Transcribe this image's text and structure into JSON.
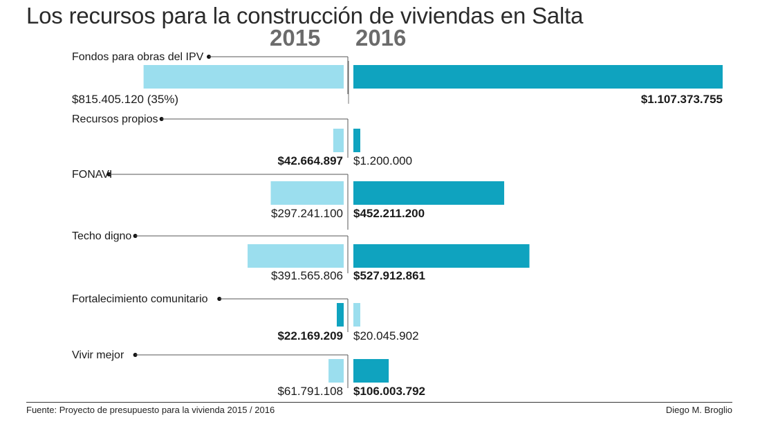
{
  "title": "Los recursos para la construcción de viviendas en Salta",
  "years": [
    "2015",
    "2016"
  ],
  "source": "Fuente: Proyecto de presupuesto para la vivienda 2015 / 2016",
  "author": "Diego M. Broglio",
  "colors": {
    "y2015": "#9bdeee",
    "y2016": "#0fa3bf",
    "text": "#1a1a1a",
    "line": "#555555"
  },
  "chart_data": {
    "type": "bar",
    "orientation": "diverging-horizontal",
    "categories": [
      "Fondos para obras del IPV",
      "Recursos propios",
      "FONAVI",
      "Techo digno",
      "Fortalecimiento comunitario",
      "Vivir mejor"
    ],
    "series": [
      {
        "name": "2015",
        "values": [
          815405120,
          42664897,
          297241100,
          391565806,
          22169209,
          61791108
        ],
        "labels": [
          "$815.405.120 (35%)",
          "$42.664.897",
          "$297.241.100",
          "$391.565.806",
          "$22.169.209",
          "$61.791.108"
        ],
        "bold": [
          false,
          true,
          false,
          false,
          true,
          false
        ],
        "dark": [
          false,
          false,
          false,
          false,
          true,
          false
        ]
      },
      {
        "name": "2016",
        "values": [
          1107373755,
          1200000,
          452211200,
          527912861,
          20045902,
          106003792
        ],
        "labels": [
          "$1.107.373.755",
          "$1.200.000",
          "$452.211.200",
          "$527.912.861",
          "$20.045.902",
          "$106.003.792"
        ],
        "bold": [
          true,
          false,
          true,
          true,
          false,
          true
        ],
        "dark": [
          true,
          true,
          true,
          true,
          false,
          true
        ]
      }
    ]
  }
}
